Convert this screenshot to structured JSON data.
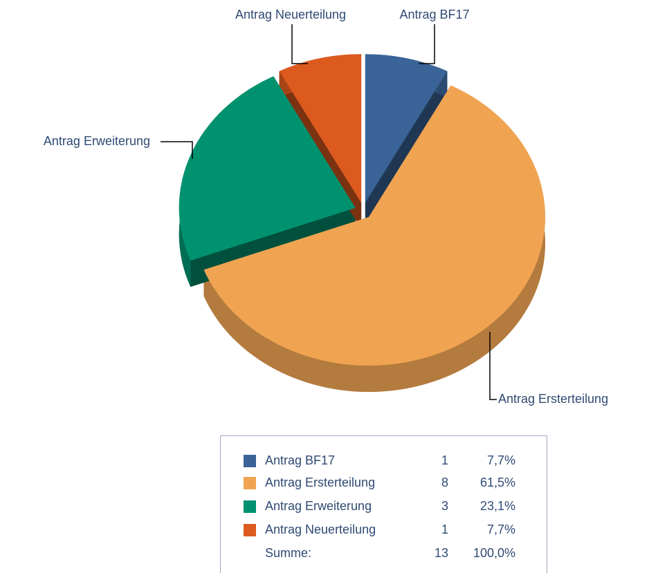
{
  "chart_data": {
    "type": "pie",
    "categories": [
      "Antrag BF17",
      "Antrag Ersterteilung",
      "Antrag Erweiterung",
      "Antrag Neuerteilung"
    ],
    "values": [
      1,
      8,
      3,
      1
    ],
    "percent_labels": [
      "7,7%",
      "61,5%",
      "23,1%",
      "7,7%"
    ],
    "colors": [
      "#3a6497",
      "#f0a452",
      "#00926f",
      "#dd5a1f"
    ],
    "sum_label": "Summe:",
    "sum": 13,
    "sum_percent_label": "100,0%"
  }
}
